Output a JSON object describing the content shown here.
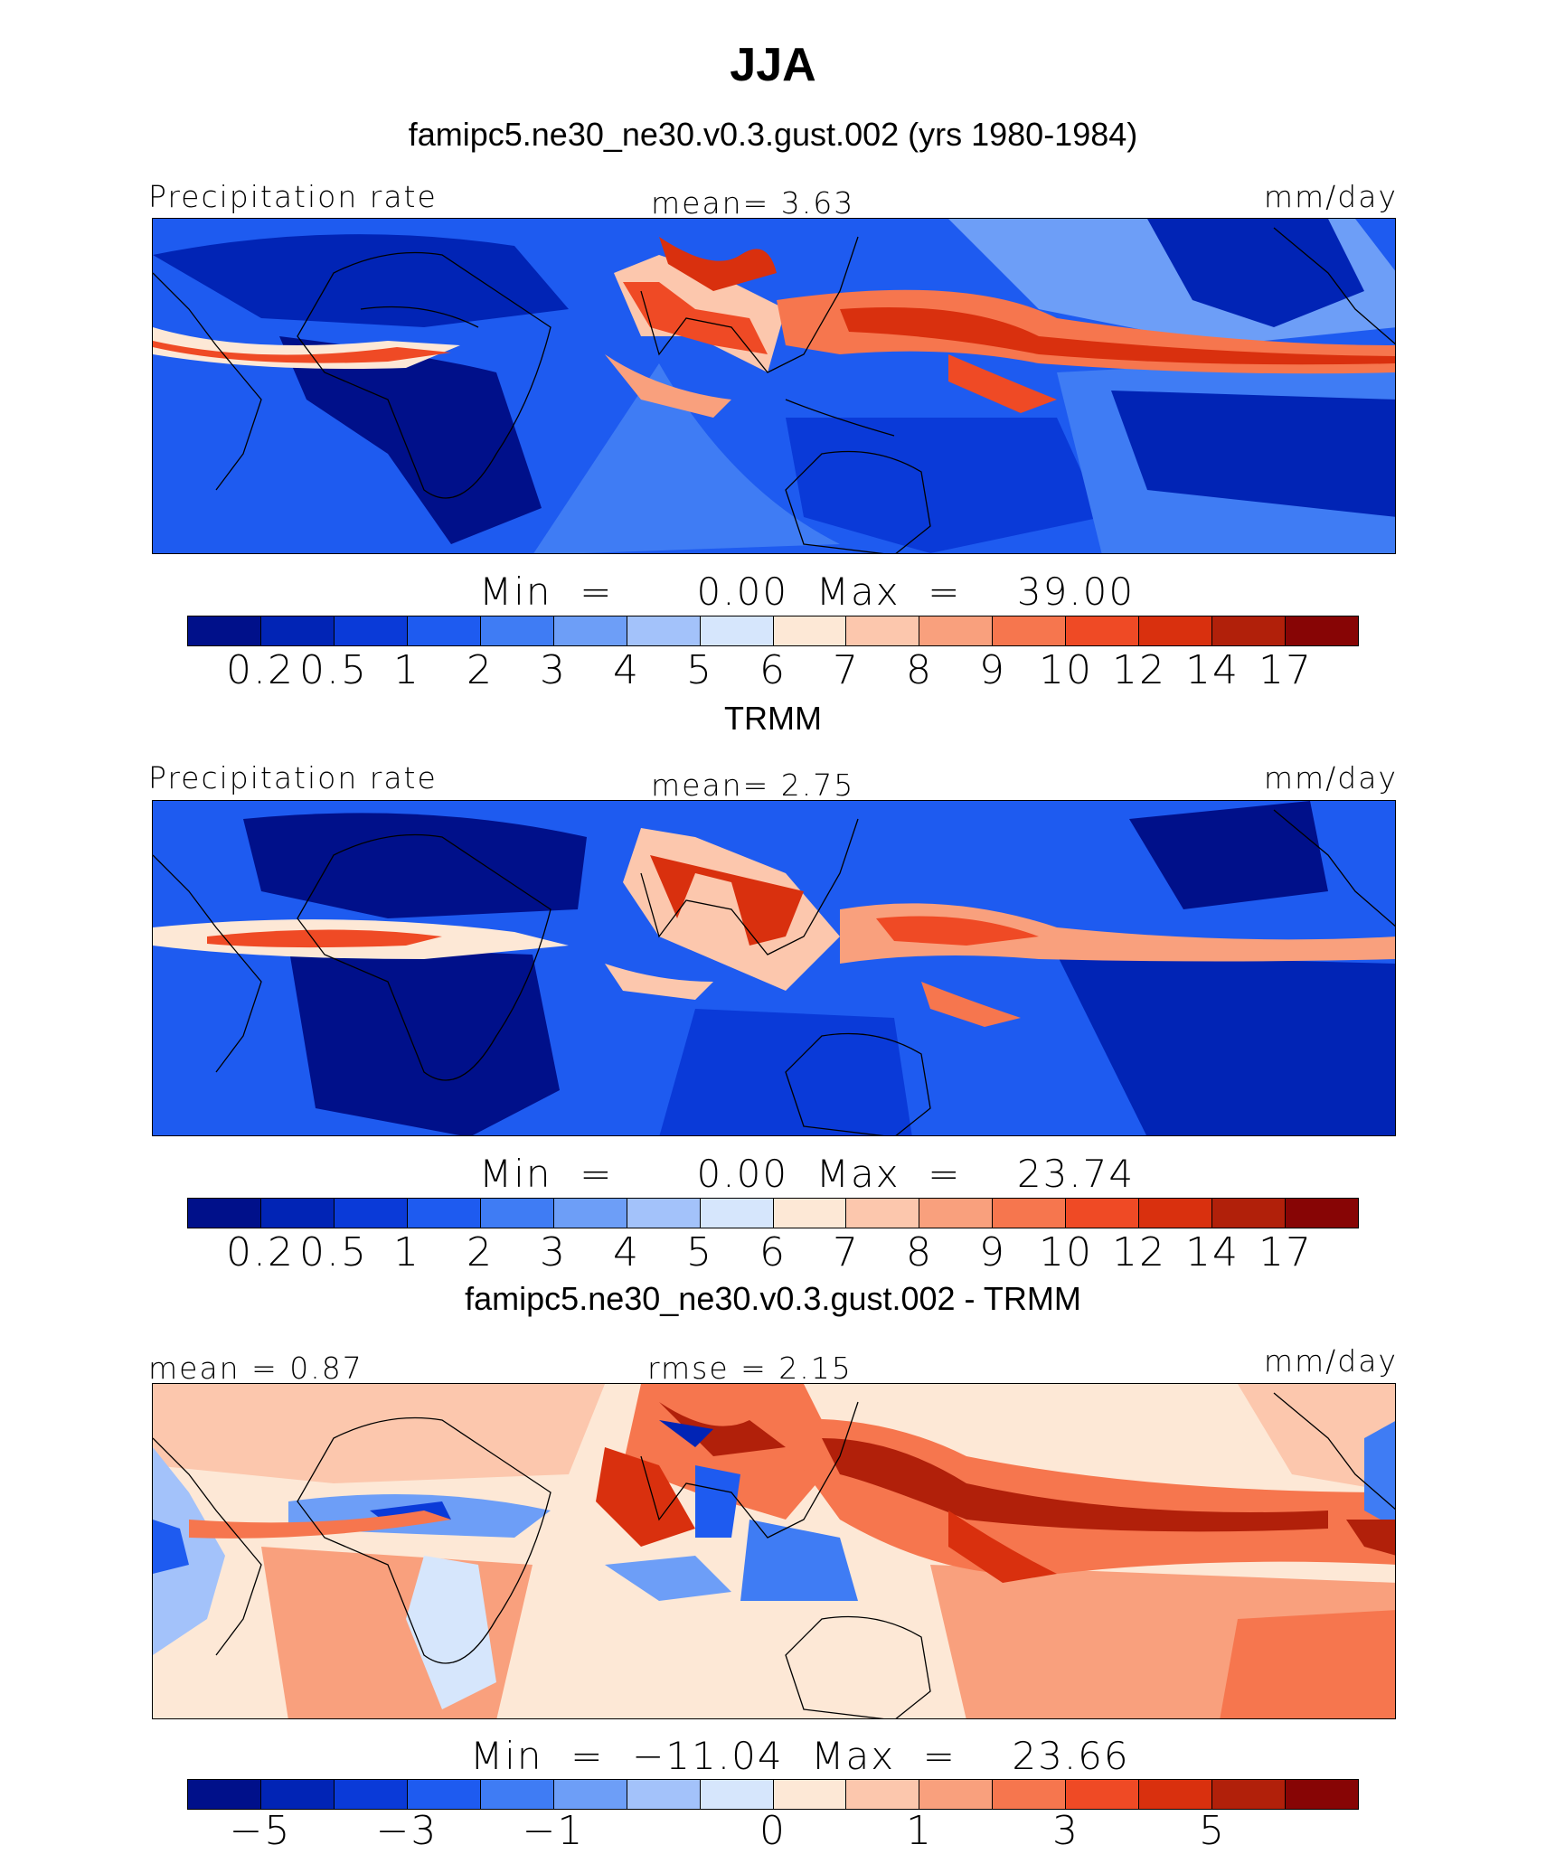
{
  "figure": {
    "title": "JJA",
    "panels": [
      {
        "heading": "famipc5.ne30_ne30.v0.3.gust.002 (yrs 1980-1984)",
        "left_label": "Precipitation rate",
        "center_label": "mean=    3.63",
        "units": "mm/day",
        "minmax": "Min  =      0.00  Max  =    39.00",
        "field_mean": 3.63,
        "field_min": 0.0,
        "field_max": 39.0
      },
      {
        "heading": "TRMM",
        "left_label": "Precipitation rate",
        "center_label": "mean=    2.75",
        "units": "mm/day",
        "minmax": "Min  =      0.00  Max  =    23.74",
        "field_mean": 2.75,
        "field_min": 0.0,
        "field_max": 23.74
      },
      {
        "heading": "famipc5.ne30_ne30.v0.3.gust.002 - TRMM",
        "left_label": "mean =    0.87",
        "center_label": "rmse =    2.15",
        "units": "mm/day",
        "minmax": "Min  =  −11.04  Max  =    23.66",
        "field_mean": 0.87,
        "field_rmse": 2.15,
        "field_min": -11.04,
        "field_max": 23.66
      }
    ]
  },
  "colorbar_colors": [
    "#00108a",
    "#0124b5",
    "#0a3ad8",
    "#1e5bf0",
    "#3f7cf4",
    "#6d9ef7",
    "#a3c2fa",
    "#d6e6fc",
    "#fde8d6",
    "#fcc7ad",
    "#f9a07d",
    "#f6764e",
    "#ef4a25",
    "#d9300e",
    "#b1200a",
    "#870505"
  ],
  "colorbar_ticks_precip": [
    "0.2",
    "0.5",
    "1",
    "2",
    "3",
    "4",
    "5",
    "6",
    "7",
    "8",
    "9",
    "10",
    "12",
    "14",
    "17"
  ],
  "colorbar_ticks_diff": [
    {
      "label": "−5",
      "index": 1
    },
    {
      "label": "−3",
      "index": 3
    },
    {
      "label": "−1",
      "index": 5
    },
    {
      "label": "0",
      "index": 8
    },
    {
      "label": "1",
      "index": 10
    },
    {
      "label": "3",
      "index": 12
    },
    {
      "label": "5",
      "index": 14
    }
  ]
}
